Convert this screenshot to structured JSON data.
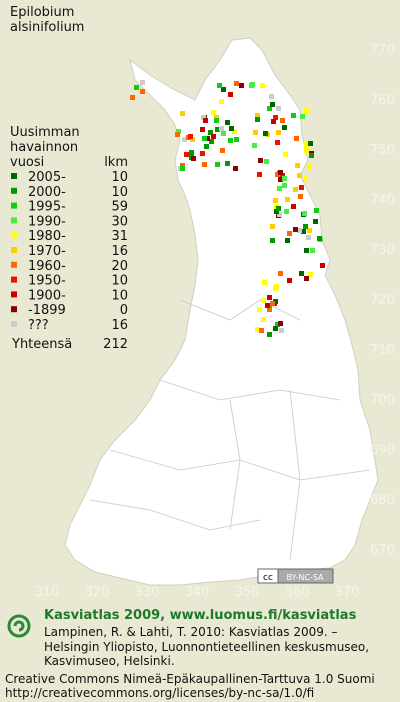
{
  "map": {
    "title": [
      "Epilobium",
      "alsinifolium"
    ],
    "legend_title": [
      "Uusimman",
      "havainnon",
      "vuosi"
    ],
    "count_header": "lkm",
    "legend": [
      {
        "label": "2005-",
        "count": 10,
        "color": "#006600"
      },
      {
        "label": "2000-",
        "count": 10,
        "color": "#009900"
      },
      {
        "label": "1995-",
        "count": 59,
        "color": "#11cc11"
      },
      {
        "label": "1990-",
        "count": 30,
        "color": "#44ee44"
      },
      {
        "label": "1980-",
        "count": 31,
        "color": "#ffff00"
      },
      {
        "label": "1970-",
        "count": 16,
        "color": "#ffcc00"
      },
      {
        "label": "1960-",
        "count": 20,
        "color": "#ff6600"
      },
      {
        "label": "1950-",
        "count": 10,
        "color": "#ee1100"
      },
      {
        "label": "1900-",
        "count": 10,
        "color": "#cc0000"
      },
      {
        "label": "-1899",
        "count": 0,
        "color": "#880000"
      },
      {
        "label": "???",
        "count": 16,
        "color": "#cccccc"
      }
    ],
    "total_label": "Yhteensä",
    "total": 212,
    "xlim": [
      300,
      380
    ],
    "xticks": [
      310,
      320,
      330,
      340,
      350,
      360,
      370
    ],
    "ylim": [
      660,
      780
    ],
    "yticks": [
      670,
      680,
      690,
      700,
      710,
      720,
      730,
      740,
      750,
      760,
      770
    ],
    "badge": [
      "cc",
      "BY-NC-SA"
    ],
    "footer": {
      "headline": "Kasviatlas 2009, www.luomus.fi/kasviatlas",
      "citation": [
        "Lampinen, R. & Lahti, T. 2010: Kasviatlas 2009. –",
        "Helsingin Yliopisto, Luonnontieteellinen keskusmuseo,",
        "Kasvimuseo, Helsinki."
      ],
      "license": [
        "Creative Commons Nimeä-Epäkaupallinen-Tarttuva 1.0 Suomi",
        "http://creativecommons.org/licenses/by-nc-sa/1.0/fi"
      ]
    }
  }
}
